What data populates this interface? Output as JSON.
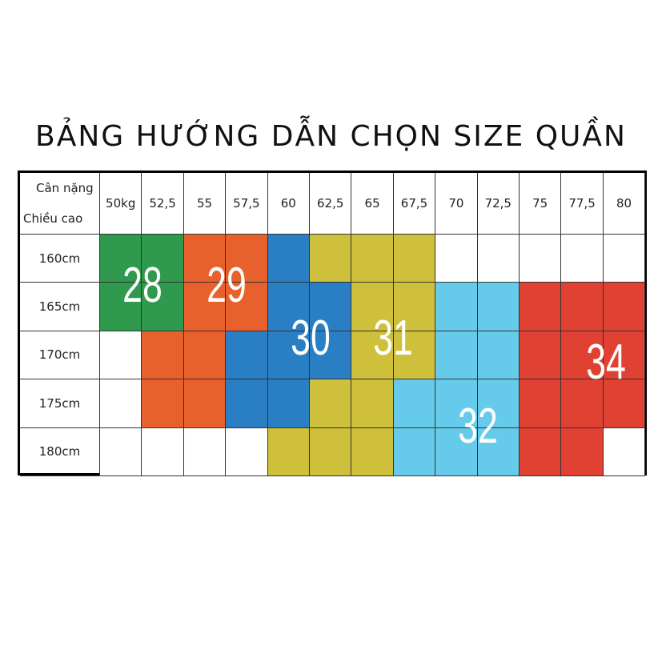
{
  "title": "BẢNG HƯỚNG DẪN CHỌN SIZE QUẦN",
  "corner": {
    "weight_label": "Cân nặng",
    "height_label": "Chiều cao"
  },
  "weights": [
    "50kg",
    "52,5",
    "55",
    "57,5",
    "60",
    "62,5",
    "65",
    "67,5",
    "70",
    "72,5",
    "75",
    "77,5",
    "80"
  ],
  "heights": [
    "160cm",
    "165cm",
    "170cm",
    "175cm",
    "180cm"
  ],
  "colors": {
    "28": "#2f9a4d",
    "29": "#e8602c",
    "30": "#2a7ec3",
    "31": "#cfc03b",
    "32": "#66cbea",
    "34": "#e04133",
    "none": "#ffffff"
  },
  "grid": [
    [
      "28",
      "28",
      "29",
      "29",
      "30",
      "31",
      "31",
      "31",
      null,
      null,
      null,
      null,
      null
    ],
    [
      "28",
      "28",
      "29",
      "29",
      "30",
      "30",
      "31",
      "31",
      "32",
      "32",
      "34",
      "34",
      "34"
    ],
    [
      null,
      "29",
      "29",
      "30",
      "30",
      "30",
      "31",
      "31",
      "32",
      "32",
      "34",
      "34",
      "34"
    ],
    [
      null,
      "29",
      "29",
      "30",
      "30",
      "31",
      "31",
      "32",
      "32",
      "32",
      "34",
      "34",
      "34"
    ],
    [
      null,
      null,
      null,
      null,
      "31",
      "31",
      "31",
      "32",
      "32",
      "32",
      "34",
      "34",
      null
    ]
  ],
  "sizes": [
    "28",
    "29",
    "30",
    "31",
    "32",
    "34"
  ]
}
